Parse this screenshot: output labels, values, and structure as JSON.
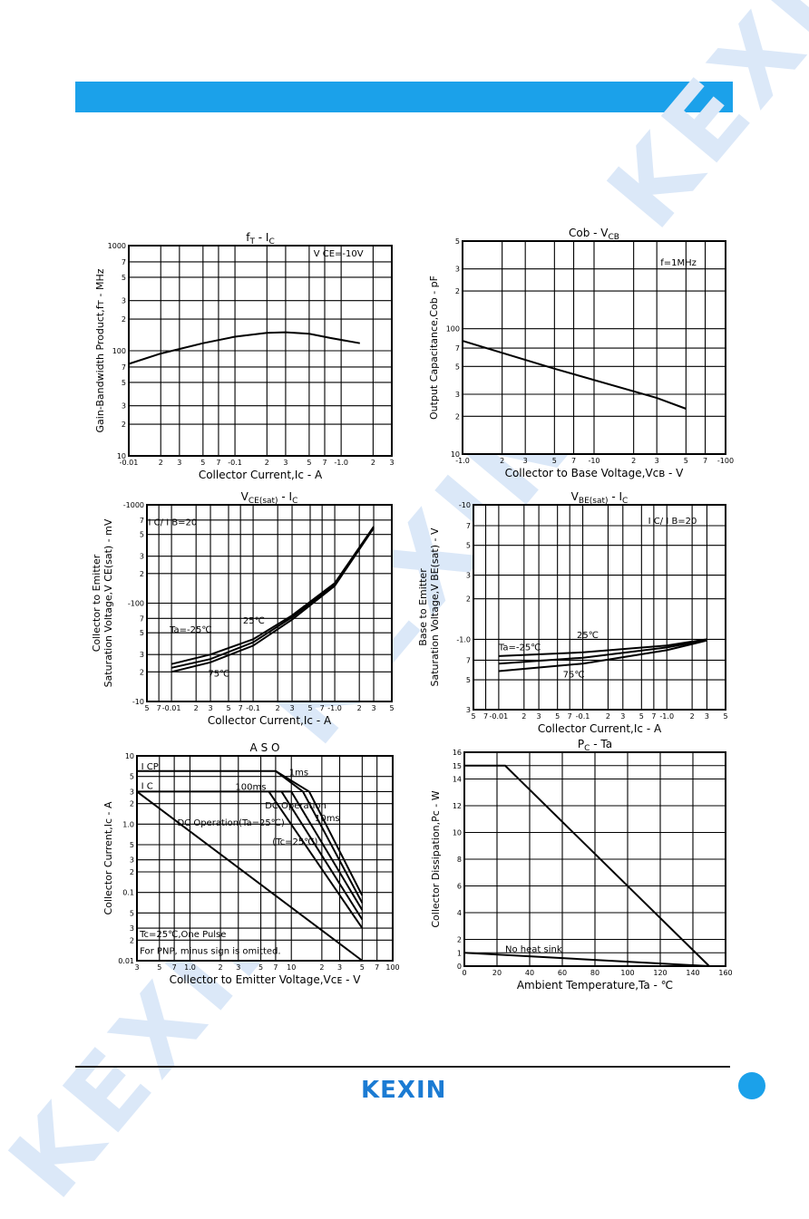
{
  "brand": {
    "logo_text": "KEXIN",
    "watermark_text": "KEXIN",
    "accent_color": "#1ba1ea"
  },
  "chart_data": [
    {
      "id": "ft_ic",
      "type": "line",
      "title_parts": [
        "f",
        "T",
        " - I",
        "C"
      ],
      "xlabel": "Collector Current,Iᴄ - A",
      "ylabel": "Gain-Bandwidth Product,fᴛ - MHz",
      "xscale": "log",
      "yscale": "log",
      "xlim": [
        0.01,
        3
      ],
      "ylim": [
        10,
        1000
      ],
      "x_ticks": [
        {
          "v": 0.01,
          "t": "-0.01"
        },
        {
          "v": 0.02,
          "t": "2"
        },
        {
          "v": 0.03,
          "t": "3"
        },
        {
          "v": 0.05,
          "t": "5"
        },
        {
          "v": 0.07,
          "t": "7"
        },
        {
          "v": 0.1,
          "t": "-0.1"
        },
        {
          "v": 0.2,
          "t": "2"
        },
        {
          "v": 0.3,
          "t": "3"
        },
        {
          "v": 0.5,
          "t": "5"
        },
        {
          "v": 0.7,
          "t": "7"
        },
        {
          "v": 1,
          "t": "-1.0"
        },
        {
          "v": 2,
          "t": "2"
        },
        {
          "v": 3,
          "t": "3"
        }
      ],
      "y_ticks": [
        {
          "v": 10,
          "t": "10"
        },
        {
          "v": 20,
          "t": "2"
        },
        {
          "v": 30,
          "t": "3"
        },
        {
          "v": 50,
          "t": "5"
        },
        {
          "v": 70,
          "t": "7"
        },
        {
          "v": 100,
          "t": "100"
        },
        {
          "v": 200,
          "t": "2"
        },
        {
          "v": 300,
          "t": "3"
        },
        {
          "v": 500,
          "t": "5"
        },
        {
          "v": 700,
          "t": "7"
        },
        {
          "v": 1000,
          "t": "1000"
        }
      ],
      "series": [
        {
          "points": [
            [
              0.01,
              75
            ],
            [
              0.02,
              94
            ],
            [
              0.05,
              118
            ],
            [
              0.1,
              136
            ],
            [
              0.2,
              148
            ],
            [
              0.3,
              150
            ],
            [
              0.5,
              145
            ],
            [
              0.8,
              132
            ],
            [
              1.5,
              118
            ]
          ]
        }
      ],
      "annotations": [
        {
          "text": "V CE=-10V",
          "x": 0.55,
          "y": 790
        }
      ]
    },
    {
      "id": "cob_vcb",
      "type": "line",
      "title_parts": [
        "Cob - V",
        "CB"
      ],
      "xlabel": "Collector to Base Voltage,Vᴄʙ - V",
      "ylabel": "Output Capacitance,Cob - pF",
      "xscale": "log",
      "yscale": "log",
      "xlim": [
        1,
        100
      ],
      "ylim": [
        10,
        500
      ],
      "x_ticks": [
        {
          "v": 1,
          "t": "-1.0"
        },
        {
          "v": 2,
          "t": "2"
        },
        {
          "v": 3,
          "t": "3"
        },
        {
          "v": 5,
          "t": "5"
        },
        {
          "v": 7,
          "t": "7"
        },
        {
          "v": 10,
          "t": "-10"
        },
        {
          "v": 20,
          "t": "2"
        },
        {
          "v": 30,
          "t": "3"
        },
        {
          "v": 50,
          "t": "5"
        },
        {
          "v": 70,
          "t": "7"
        },
        {
          "v": 100,
          "t": "-100"
        }
      ],
      "y_ticks": [
        {
          "v": 10,
          "t": "10"
        },
        {
          "v": 20,
          "t": "2"
        },
        {
          "v": 30,
          "t": "3"
        },
        {
          "v": 50,
          "t": "5"
        },
        {
          "v": 70,
          "t": "7"
        },
        {
          "v": 100,
          "t": "100"
        },
        {
          "v": 200,
          "t": "2"
        },
        {
          "v": 300,
          "t": "3"
        },
        {
          "v": 500,
          "t": "5"
        }
      ],
      "series": [
        {
          "points": [
            [
              1,
              80
            ],
            [
              5,
              48
            ],
            [
              30,
              28
            ],
            [
              50,
              23
            ]
          ]
        }
      ],
      "annotations": [
        {
          "text": "f=1MHz",
          "x": 32,
          "y": 320
        }
      ]
    },
    {
      "id": "vcesat_ic",
      "type": "line",
      "title_parts": [
        "V",
        "CE(sat)",
        " - I",
        "C"
      ],
      "xlabel": "Collector Current,Iᴄ - A",
      "ylabel_lines": [
        "Collector to Emitter",
        "Saturation Voltage,V CE(sat) - mV"
      ],
      "xscale": "log",
      "yscale": "log",
      "xlim": [
        0.005,
        5
      ],
      "ylim": [
        10,
        1000
      ],
      "x_ticks": [
        {
          "v": 0.005,
          "t": "5"
        },
        {
          "v": 0.007,
          "t": "7"
        },
        {
          "v": 0.01,
          "t": "-0.01"
        },
        {
          "v": 0.02,
          "t": "2"
        },
        {
          "v": 0.03,
          "t": "3"
        },
        {
          "v": 0.05,
          "t": "5"
        },
        {
          "v": 0.07,
          "t": "7"
        },
        {
          "v": 0.1,
          "t": "-0.1"
        },
        {
          "v": 0.2,
          "t": "2"
        },
        {
          "v": 0.3,
          "t": "3"
        },
        {
          "v": 0.5,
          "t": "5"
        },
        {
          "v": 0.7,
          "t": "7"
        },
        {
          "v": 1,
          "t": "-1.0"
        },
        {
          "v": 2,
          "t": "2"
        },
        {
          "v": 3,
          "t": "3"
        },
        {
          "v": 5,
          "t": "5"
        }
      ],
      "y_ticks": [
        {
          "v": 10,
          "t": "-10"
        },
        {
          "v": 20,
          "t": "2"
        },
        {
          "v": 30,
          "t": "3"
        },
        {
          "v": 50,
          "t": "5"
        },
        {
          "v": 70,
          "t": "7"
        },
        {
          "v": 100,
          "t": "-100"
        },
        {
          "v": 200,
          "t": "2"
        },
        {
          "v": 300,
          "t": "3"
        },
        {
          "v": 500,
          "t": "5"
        },
        {
          "v": 700,
          "t": "7"
        },
        {
          "v": 1000,
          "t": "-1000"
        }
      ],
      "series": [
        {
          "points": [
            [
              0.01,
              24
            ],
            [
              0.03,
              30
            ],
            [
              0.1,
              43
            ],
            [
              0.3,
              75
            ],
            [
              1,
              160
            ],
            [
              3,
              600
            ]
          ]
        },
        {
          "points": [
            [
              0.01,
              22
            ],
            [
              0.03,
              27
            ],
            [
              0.1,
              40
            ],
            [
              0.3,
              72
            ],
            [
              1,
              155
            ],
            [
              3,
              590
            ]
          ]
        },
        {
          "points": [
            [
              0.01,
              20
            ],
            [
              0.03,
              25
            ],
            [
              0.1,
              37
            ],
            [
              0.3,
              68
            ],
            [
              1,
              150
            ],
            [
              3,
              580
            ]
          ]
        }
      ],
      "annotations": [
        {
          "text": "I C/ I B=20",
          "x": 0.0052,
          "y": 620
        },
        {
          "text": "Ta=-25℃",
          "x": 0.0095,
          "y": 50
        },
        {
          "text": "25℃",
          "x": 0.075,
          "y": 62
        },
        {
          "text": "75℃",
          "x": 0.028,
          "y": 18
        }
      ]
    },
    {
      "id": "vbesat_ic",
      "type": "line",
      "title_parts": [
        "V",
        "BE(sat)",
        " - I",
        "C"
      ],
      "xlabel": "Collector Current,Iᴄ - A",
      "ylabel_lines": [
        "Base to Emitter",
        "Saturation Voltage,V BE(sat) - V"
      ],
      "xscale": "log",
      "yscale": "log",
      "xlim": [
        0.005,
        5
      ],
      "ylim": [
        0.3,
        10
      ],
      "x_ticks": [
        {
          "v": 0.005,
          "t": "5"
        },
        {
          "v": 0.007,
          "t": "7"
        },
        {
          "v": 0.01,
          "t": "-0.01"
        },
        {
          "v": 0.02,
          "t": "2"
        },
        {
          "v": 0.03,
          "t": "3"
        },
        {
          "v": 0.05,
          "t": "5"
        },
        {
          "v": 0.07,
          "t": "7"
        },
        {
          "v": 0.1,
          "t": "-0.1"
        },
        {
          "v": 0.2,
          "t": "2"
        },
        {
          "v": 0.3,
          "t": "3"
        },
        {
          "v": 0.5,
          "t": "5"
        },
        {
          "v": 0.7,
          "t": "7"
        },
        {
          "v": 1,
          "t": "-1.0"
        },
        {
          "v": 2,
          "t": "2"
        },
        {
          "v": 3,
          "t": "3"
        },
        {
          "v": 5,
          "t": "5"
        }
      ],
      "y_ticks": [
        {
          "v": 0.3,
          "t": "3"
        },
        {
          "v": 0.5,
          "t": "5"
        },
        {
          "v": 0.7,
          "t": "7"
        },
        {
          "v": 1,
          "t": "-1.0"
        },
        {
          "v": 2,
          "t": "2"
        },
        {
          "v": 3,
          "t": "3"
        },
        {
          "v": 5,
          "t": "5"
        },
        {
          "v": 7,
          "t": "7"
        },
        {
          "v": 10,
          "t": "-10"
        }
      ],
      "series": [
        {
          "points": [
            [
              0.01,
              0.75
            ],
            [
              0.1,
              0.8
            ],
            [
              1,
              0.9
            ],
            [
              3,
              1.0
            ]
          ]
        },
        {
          "points": [
            [
              0.01,
              0.66
            ],
            [
              0.1,
              0.73
            ],
            [
              1,
              0.87
            ],
            [
              3,
              0.99
            ]
          ]
        },
        {
          "points": [
            [
              0.01,
              0.58
            ],
            [
              0.1,
              0.66
            ],
            [
              1,
              0.83
            ],
            [
              3,
              0.98
            ]
          ]
        }
      ],
      "annotations": [
        {
          "text": "I C/ I B=20",
          "x": 0.6,
          "y": 7.2
        },
        {
          "text": "Ta=-25℃",
          "x": 0.01,
          "y": 0.83
        },
        {
          "text": "25℃",
          "x": 0.085,
          "y": 1.02
        },
        {
          "text": "75℃",
          "x": 0.058,
          "y": 0.52
        }
      ]
    },
    {
      "id": "aso",
      "type": "line",
      "title_parts": [
        "A S O"
      ],
      "xlabel": "Collector to Emitter Voltage,Vᴄᴇ - V",
      "ylabel": "Collector Current,Iᴄ - A",
      "xscale": "log",
      "yscale": "log",
      "xlim": [
        0.3,
        100
      ],
      "ylim": [
        0.01,
        10
      ],
      "x_ticks": [
        {
          "v": 0.3,
          "t": "3"
        },
        {
          "v": 0.5,
          "t": "5"
        },
        {
          "v": 0.7,
          "t": "7"
        },
        {
          "v": 1,
          "t": "1.0"
        },
        {
          "v": 2,
          "t": "2"
        },
        {
          "v": 3,
          "t": "3"
        },
        {
          "v": 5,
          "t": "5"
        },
        {
          "v": 7,
          "t": "7"
        },
        {
          "v": 10,
          "t": "10"
        },
        {
          "v": 20,
          "t": "2"
        },
        {
          "v": 30,
          "t": "3"
        },
        {
          "v": 50,
          "t": "5"
        },
        {
          "v": 70,
          "t": "7"
        },
        {
          "v": 100,
          "t": "100"
        }
      ],
      "y_ticks": [
        {
          "v": 0.01,
          "t": "0.01"
        },
        {
          "v": 0.02,
          "t": "2"
        },
        {
          "v": 0.03,
          "t": "3"
        },
        {
          "v": 0.05,
          "t": "5"
        },
        {
          "v": 0.1,
          "t": "0.1"
        },
        {
          "v": 0.2,
          "t": "2"
        },
        {
          "v": 0.3,
          "t": "3"
        },
        {
          "v": 0.5,
          "t": "5"
        },
        {
          "v": 1,
          "t": "1.0"
        },
        {
          "v": 2,
          "t": "2"
        },
        {
          "v": 3,
          "t": "3"
        },
        {
          "v": 5,
          "t": "5"
        },
        {
          "v": 10,
          "t": "10"
        }
      ],
      "series": [
        {
          "name": "I CP",
          "points": [
            [
              0.3,
              6
            ],
            [
              7,
              6
            ]
          ]
        },
        {
          "name": "1ms",
          "points": [
            [
              7,
              6
            ],
            [
              15,
              3
            ],
            [
              50,
              0.09
            ]
          ]
        },
        {
          "name": "10ms",
          "points": [
            [
              7,
              6
            ],
            [
              13,
              3
            ],
            [
              50,
              0.07
            ]
          ]
        },
        {
          "name": "100ms",
          "points": [
            [
              0.3,
              3
            ],
            [
              10,
              3
            ],
            [
              50,
              0.055
            ]
          ]
        },
        {
          "points": [
            [
              8,
              3
            ],
            [
              50,
              0.04
            ]
          ]
        },
        {
          "points": [
            [
              6,
              3
            ],
            [
              50,
              0.03
            ]
          ]
        },
        {
          "points": [
            [
              0.3,
              3
            ],
            [
              50,
              0.01
            ]
          ]
        }
      ],
      "annotations": [
        {
          "text": "I CP",
          "x": 0.33,
          "y": 6.3
        },
        {
          "text": "I C",
          "x": 0.33,
          "y": 3.3
        },
        {
          "text": "100ms",
          "x": 2.8,
          "y": 3.2
        },
        {
          "text": "1ms",
          "x": 9.5,
          "y": 5.2
        },
        {
          "text": "10ms",
          "x": 17,
          "y": 1.1
        },
        {
          "text": "DC Operation",
          "x": 5.5,
          "y": 1.7
        },
        {
          "text": "(Tc=25℃)",
          "x": 6.5,
          "y": 0.5
        },
        {
          "text": "DC Operation(Ta=25℃)",
          "x": 0.75,
          "y": 0.95
        },
        {
          "text": "Tc=25℃,One Pulse",
          "x": 0.32,
          "y": 0.022
        },
        {
          "text": "For PNP, minus sign is omitted.",
          "x": 0.32,
          "y": 0.0125
        }
      ]
    },
    {
      "id": "pc_ta",
      "type": "line",
      "title_parts": [
        "P",
        "C",
        " - Ta"
      ],
      "xlabel": "Ambient Temperature,Ta - ℃",
      "ylabel": "Collector Dissipation,Pᴄ - W",
      "xscale": "linear",
      "yscale": "linear",
      "xlim": [
        0,
        160
      ],
      "ylim": [
        0,
        16
      ],
      "x_ticks": [
        {
          "v": 0,
          "t": "0"
        },
        {
          "v": 20,
          "t": "20"
        },
        {
          "v": 40,
          "t": "40"
        },
        {
          "v": 60,
          "t": "60"
        },
        {
          "v": 80,
          "t": "80"
        },
        {
          "v": 100,
          "t": "100"
        },
        {
          "v": 120,
          "t": "120"
        },
        {
          "v": 140,
          "t": "140"
        },
        {
          "v": 160,
          "t": "160"
        }
      ],
      "y_ticks": [
        {
          "v": 0,
          "t": "0"
        },
        {
          "v": 1,
          "t": "1"
        },
        {
          "v": 2,
          "t": "2"
        },
        {
          "v": 4,
          "t": "4"
        },
        {
          "v": 6,
          "t": "6"
        },
        {
          "v": 8,
          "t": "8"
        },
        {
          "v": 10,
          "t": "10"
        },
        {
          "v": 12,
          "t": "12"
        },
        {
          "v": 14,
          "t": "14"
        },
        {
          "v": 15,
          "t": "15"
        },
        {
          "v": 16,
          "t": "16"
        }
      ],
      "series": [
        {
          "points": [
            [
              0,
              15
            ],
            [
              25,
              15
            ],
            [
              150,
              0
            ]
          ]
        },
        {
          "name": "No heat sink",
          "points": [
            [
              0,
              1
            ],
            [
              150,
              0
            ]
          ]
        }
      ],
      "annotations": [
        {
          "text": "No heat sink",
          "x": 25,
          "y": 1.05
        }
      ]
    }
  ]
}
